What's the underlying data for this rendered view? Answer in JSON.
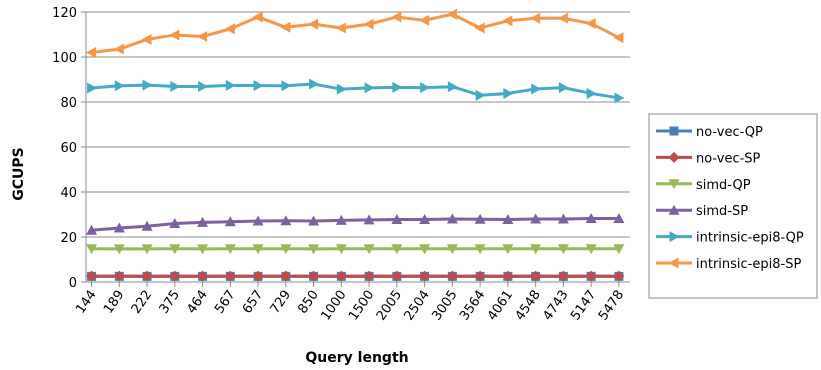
{
  "chart_data": {
    "type": "line",
    "title": "",
    "xlabel": "Query length",
    "ylabel": "GCUPS",
    "ylim": [
      0,
      120
    ],
    "yticks": [
      0,
      20,
      40,
      60,
      80,
      100,
      120
    ],
    "grid": "horizontal",
    "legend_position": "right",
    "categories": [
      "144",
      "189",
      "222",
      "375",
      "464",
      "567",
      "657",
      "729",
      "850",
      "1000",
      "1500",
      "2005",
      "2504",
      "3005",
      "3564",
      "4061",
      "4548",
      "4743",
      "5147",
      "5478"
    ],
    "series": [
      {
        "name": "no-vec-QP",
        "color": "#4a7ebb",
        "marker": "square",
        "values": [
          2.5,
          2.5,
          2.5,
          2.5,
          2.5,
          2.5,
          2.5,
          2.5,
          2.5,
          2.5,
          2.5,
          2.5,
          2.5,
          2.5,
          2.5,
          2.5,
          2.5,
          2.5,
          2.5,
          2.5
        ]
      },
      {
        "name": "no-vec-SP",
        "color": "#be4b48",
        "marker": "diamond",
        "values": [
          2.6,
          2.6,
          2.6,
          2.6,
          2.6,
          2.6,
          2.6,
          2.6,
          2.6,
          2.6,
          2.6,
          2.6,
          2.6,
          2.6,
          2.6,
          2.6,
          2.6,
          2.6,
          2.6,
          2.6
        ]
      },
      {
        "name": "simd-QP",
        "color": "#98b954",
        "marker": "triangle-down",
        "values": [
          14.8,
          14.7,
          14.7,
          14.8,
          14.7,
          14.8,
          14.8,
          14.8,
          14.7,
          14.8,
          14.8,
          14.8,
          14.8,
          14.8,
          14.8,
          14.8,
          14.8,
          14.8,
          14.8,
          14.8
        ]
      },
      {
        "name": "simd-SP",
        "color": "#7d60a0",
        "marker": "triangle-up",
        "values": [
          23,
          24,
          24.8,
          26,
          26.5,
          26.8,
          27.1,
          27.2,
          27.1,
          27.4,
          27.6,
          27.8,
          27.8,
          28,
          27.9,
          27.8,
          28,
          28,
          28.2,
          28.2
        ]
      },
      {
        "name": "intrinsic-epi8-QP",
        "color": "#46aac5",
        "marker": "triangle-right",
        "values": [
          86.2,
          87.2,
          87.5,
          86.9,
          86.9,
          87.4,
          87.3,
          87.2,
          88,
          85.7,
          86.3,
          86.5,
          86.4,
          86.8,
          83,
          83.8,
          85.8,
          86.4,
          83.8,
          81.8
        ]
      },
      {
        "name": "intrinsic-epi8-SP",
        "color": "#f79646",
        "marker": "triangle-left",
        "values": [
          102,
          103.5,
          107.8,
          109.8,
          109.1,
          112.5,
          117.8,
          113.2,
          114.6,
          112.9,
          114.6,
          117.8,
          116.3,
          119,
          112.9,
          116.1,
          117.2,
          117.2,
          114.9,
          108.6
        ]
      }
    ]
  }
}
